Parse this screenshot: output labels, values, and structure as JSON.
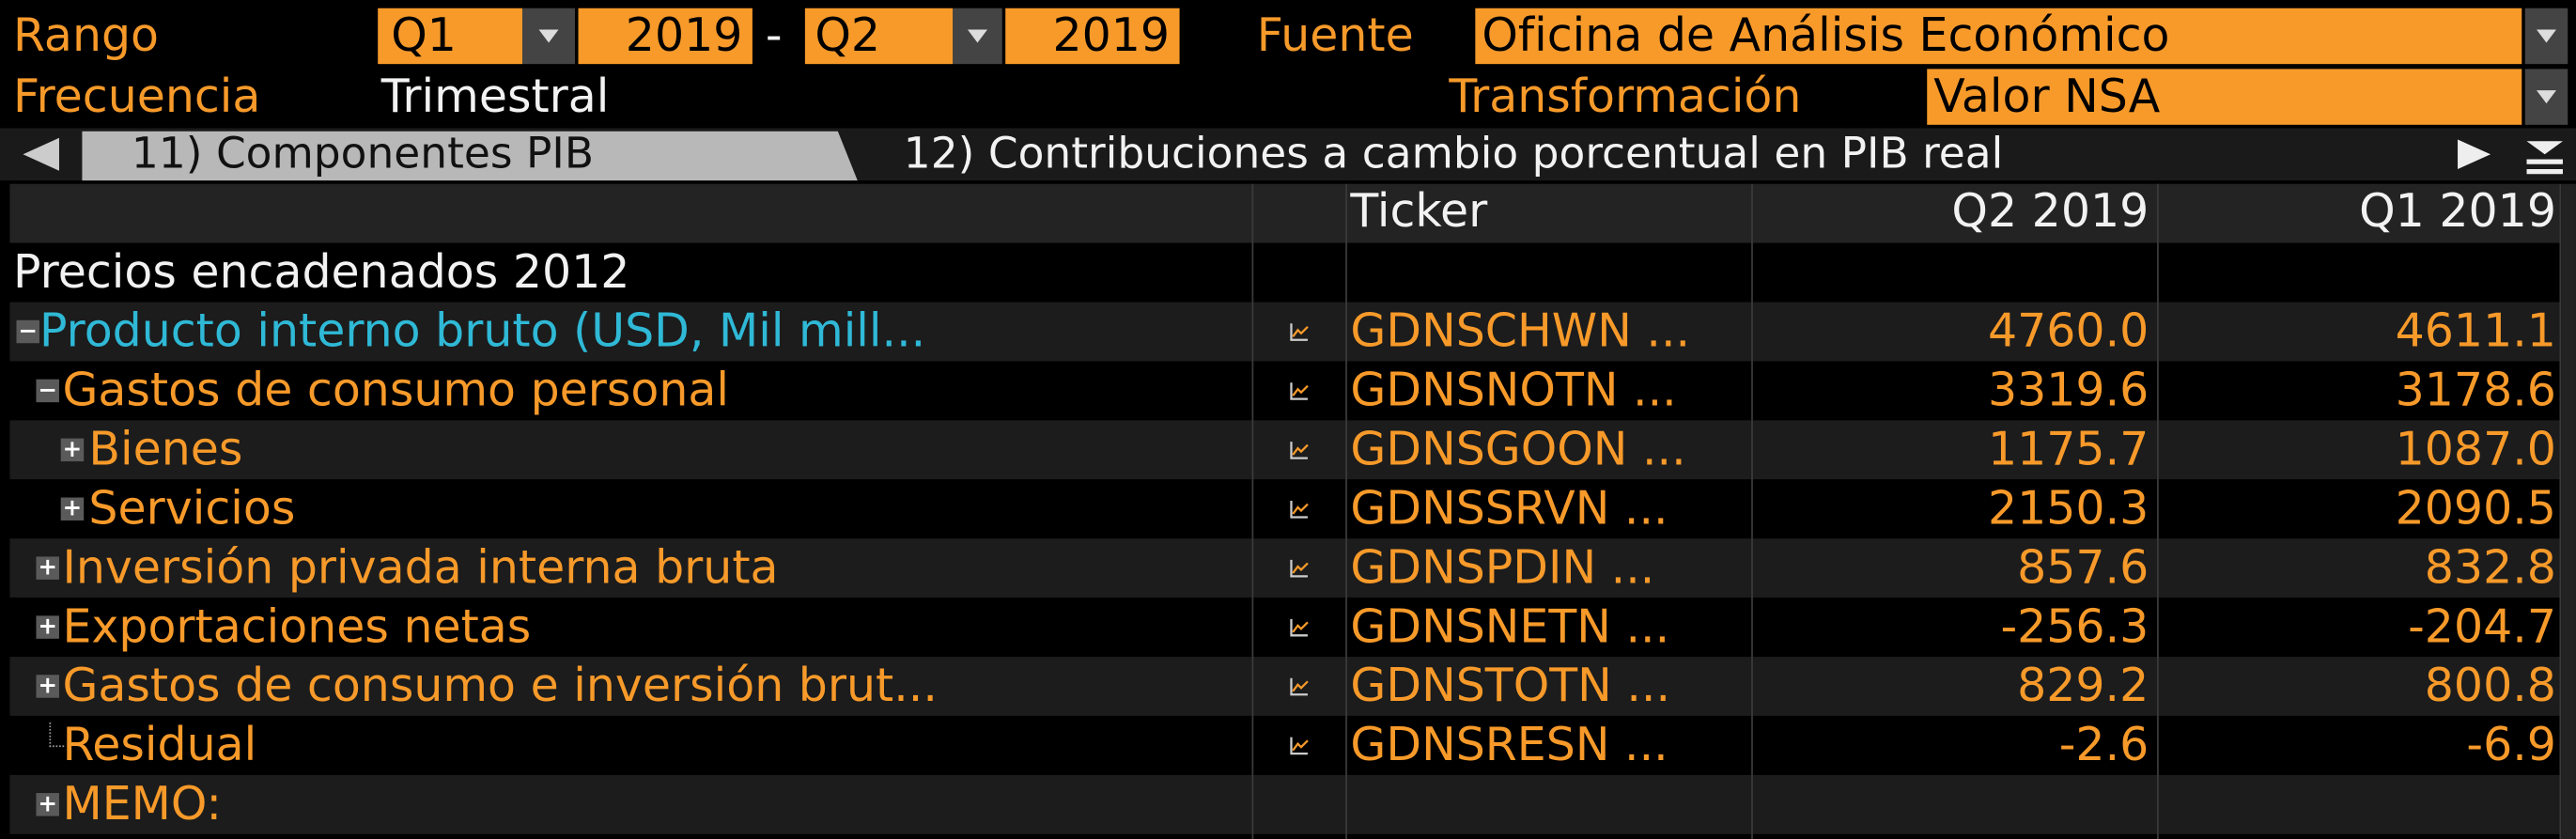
{
  "header": {
    "range_label": "Rango",
    "range_start_quarter": "Q1",
    "range_start_year": "2019",
    "range_separator": "-",
    "range_end_quarter": "Q2",
    "range_end_year": "2019",
    "source_label": "Fuente",
    "source": "Oficina de Análisis Económico",
    "frequency_label": "Frecuencia",
    "frequency": "Trimestral",
    "transformation_label": "Transformación",
    "transformation": "Valor NSA"
  },
  "tabs": [
    "11) Componentes PIB",
    "12) Contribuciones a cambio porcentual en PIB real"
  ],
  "table": {
    "columns": [
      "Ticker",
      "Q2 2019",
      "Q1 2019"
    ],
    "rows": [
      [
        "Precios encadenados 2012"
      ],
      [
        "Producto interno bruto (USD, Mil mill...",
        "GDNSCHWN ...",
        "4760.0",
        "4611.1"
      ],
      [
        "Gastos de consumo personal",
        "GDNSNOTN ...",
        "3319.6",
        "3178.6"
      ],
      [
        "Bienes",
        "GDNSGOON ...",
        "1175.7",
        "1087.0"
      ],
      [
        "Servicios",
        "GDNSSRVN ...",
        "2150.3",
        "2090.5"
      ],
      [
        "Inversión privada interna bruta",
        "GDNSPDIN ...",
        "857.6",
        "832.8"
      ],
      [
        "Exportaciones netas",
        "GDNSNETN ...",
        "-256.3",
        "-204.7"
      ],
      [
        "Gastos de consumo e inversión brut...",
        "GDNSTOTN ...",
        "829.2",
        "800.8"
      ],
      [
        "Residual",
        "GDNSRESN ...",
        "-2.6",
        "-6.9"
      ],
      [
        "MEMO:"
      ]
    ]
  }
}
